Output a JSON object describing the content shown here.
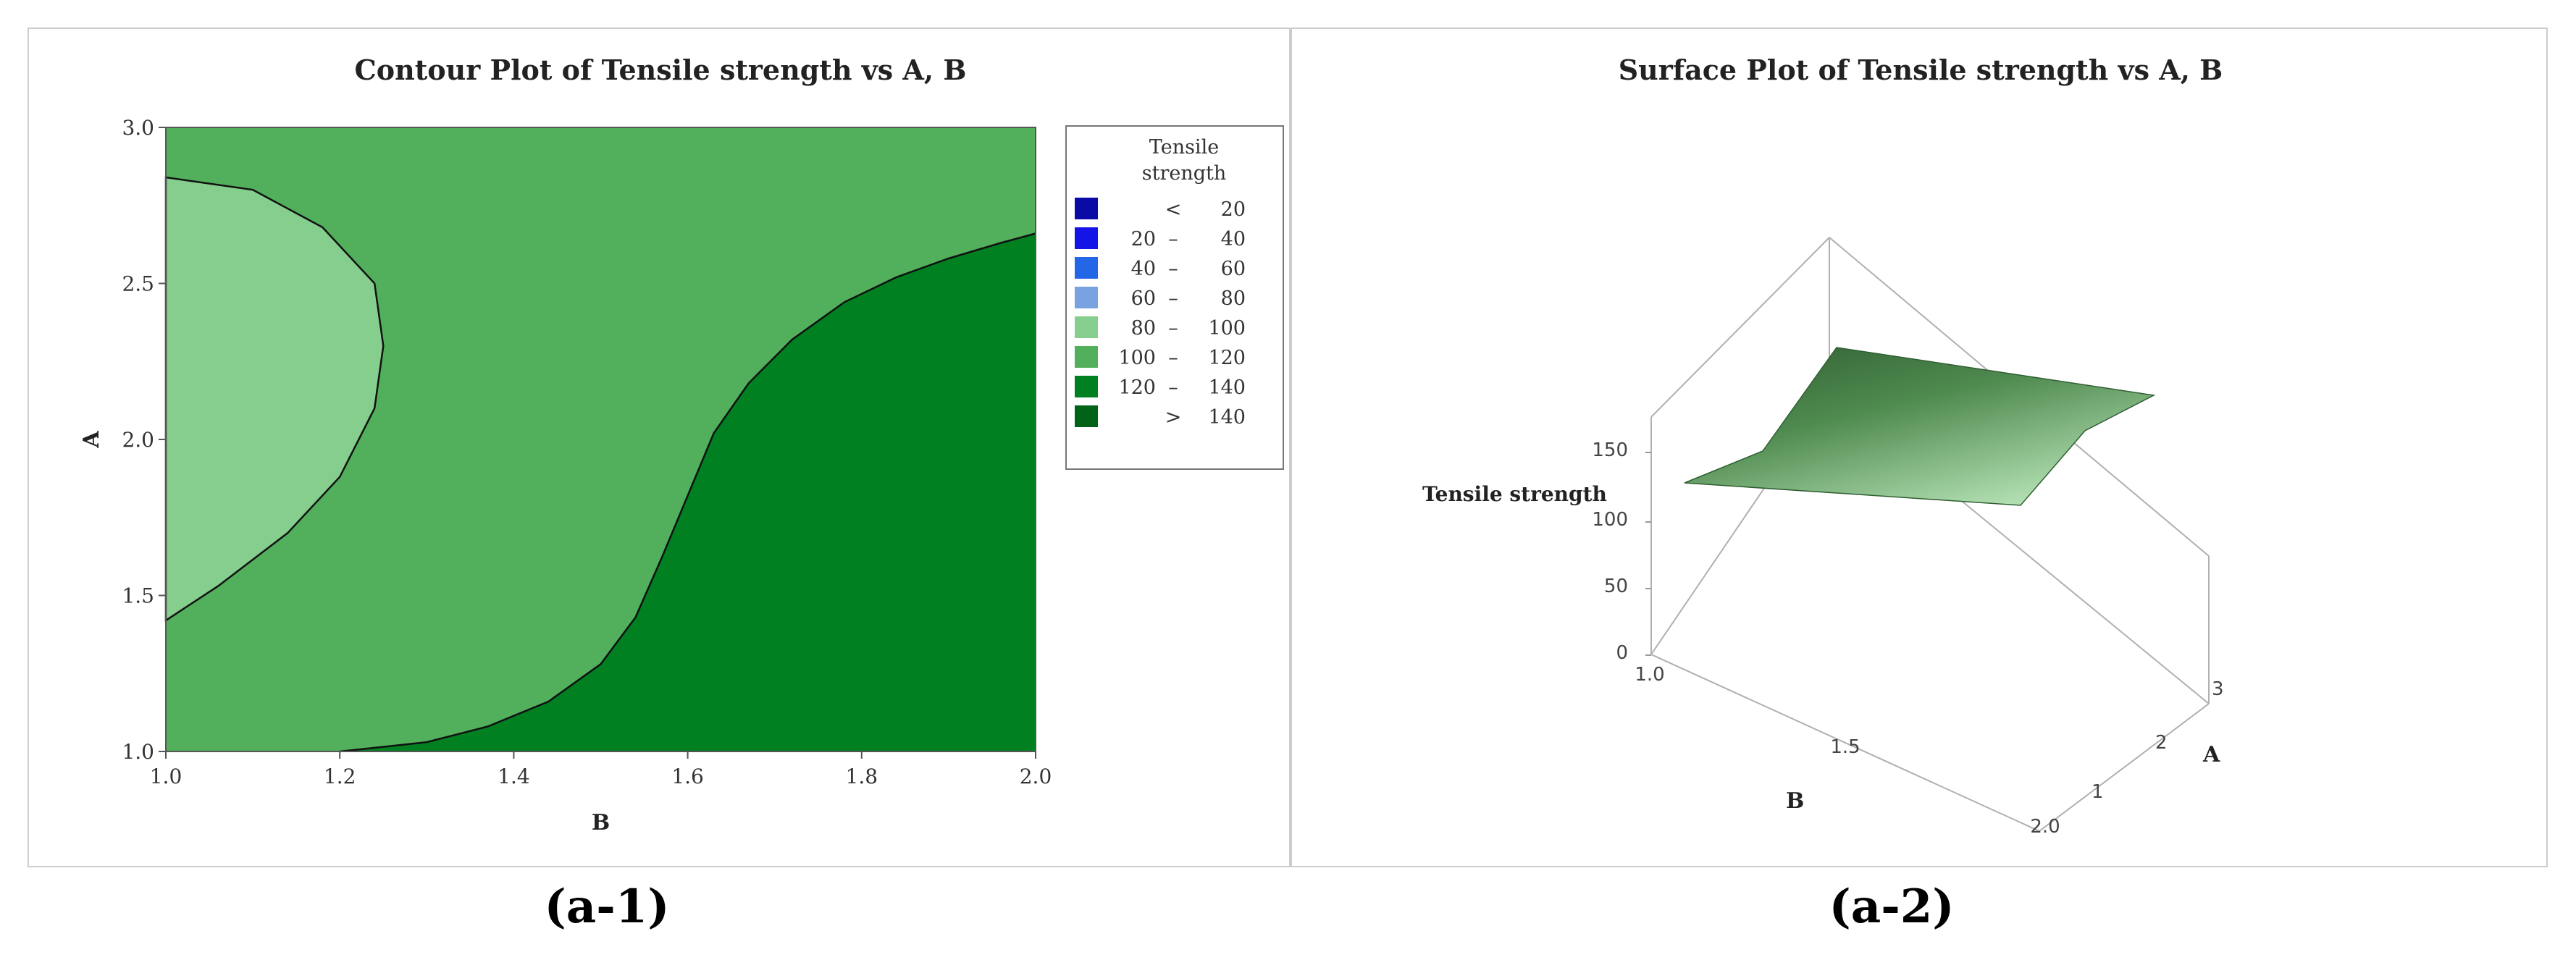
{
  "chart_data": [
    {
      "type": "contour",
      "title": "Contour Plot of Tensile strength vs A, B",
      "xlabel": "B",
      "ylabel": "A",
      "xlim": [
        1.0,
        2.0
      ],
      "ylim": [
        1.0,
        3.0
      ],
      "x_ticks": [
        "1.0",
        "1.2",
        "1.4",
        "1.6",
        "1.8",
        "2.0"
      ],
      "y_ticks": [
        "1.0",
        "1.5",
        "2.0",
        "2.5",
        "3.0"
      ],
      "legend": {
        "title_lines": [
          "Tensile",
          "strength"
        ],
        "placement": "right",
        "entries": [
          {
            "lo": "",
            "sep": "<",
            "hi": "20",
            "color": "#0a0aa6"
          },
          {
            "lo": "20",
            "sep": "–",
            "hi": "40",
            "color": "#1414e6"
          },
          {
            "lo": "40",
            "sep": "–",
            "hi": "60",
            "color": "#2366e6"
          },
          {
            "lo": "60",
            "sep": "–",
            "hi": "80",
            "color": "#79a3e0"
          },
          {
            "lo": "80",
            "sep": "–",
            "hi": "100",
            "color": "#86ce8e"
          },
          {
            "lo": "100",
            "sep": "–",
            "hi": "120",
            "color": "#52b05c"
          },
          {
            "lo": "120",
            "sep": "–",
            "hi": "140",
            "color": "#008021"
          },
          {
            "lo": "",
            "sep": ">",
            "hi": "140",
            "color": "#006318"
          }
        ]
      },
      "regions": [
        {
          "level": "100 – 120",
          "color": "#52b05c"
        },
        {
          "level": "80 – 100",
          "color": "#86ce8e",
          "boundary": [
            [
              1.0,
              2.84
            ],
            [
              1.1,
              2.8
            ],
            [
              1.18,
              2.68
            ],
            [
              1.24,
              2.5
            ],
            [
              1.25,
              2.3
            ],
            [
              1.24,
              2.1
            ],
            [
              1.2,
              1.88
            ],
            [
              1.14,
              1.7
            ],
            [
              1.06,
              1.53
            ],
            [
              1.0,
              1.42
            ]
          ]
        },
        {
          "level": "120 – 140",
          "color": "#008021",
          "boundary": [
            [
              1.2,
              1.0
            ],
            [
              1.3,
              1.03
            ],
            [
              1.37,
              1.08
            ],
            [
              1.44,
              1.16
            ],
            [
              1.5,
              1.28
            ],
            [
              1.54,
              1.43
            ],
            [
              1.57,
              1.62
            ],
            [
              1.6,
              1.82
            ],
            [
              1.63,
              2.02
            ],
            [
              1.67,
              2.18
            ],
            [
              1.72,
              2.32
            ],
            [
              1.78,
              2.44
            ],
            [
              1.84,
              2.52
            ],
            [
              1.9,
              2.58
            ],
            [
              1.96,
              2.63
            ],
            [
              2.0,
              2.66
            ]
          ]
        }
      ]
    },
    {
      "type": "surface",
      "title": "Surface Plot of Tensile strength vs A, B",
      "zlabel": "Tensile strength",
      "xlabel": "B",
      "ylabel": "A",
      "xlim": [
        1.0,
        2.0
      ],
      "ylim": [
        1,
        3
      ],
      "zlim": [
        0,
        150
      ],
      "x_ticks": [
        "1.0",
        "1.5",
        "2.0"
      ],
      "y_ticks": [
        "1",
        "2",
        "3"
      ],
      "z_ticks": [
        "0",
        "50",
        "100",
        "150"
      ],
      "surface_color_light": "#b3e0b3",
      "surface_color_dark": "#2f5e32"
    }
  ],
  "captions": [
    "(a-1)",
    "(a-2)"
  ]
}
